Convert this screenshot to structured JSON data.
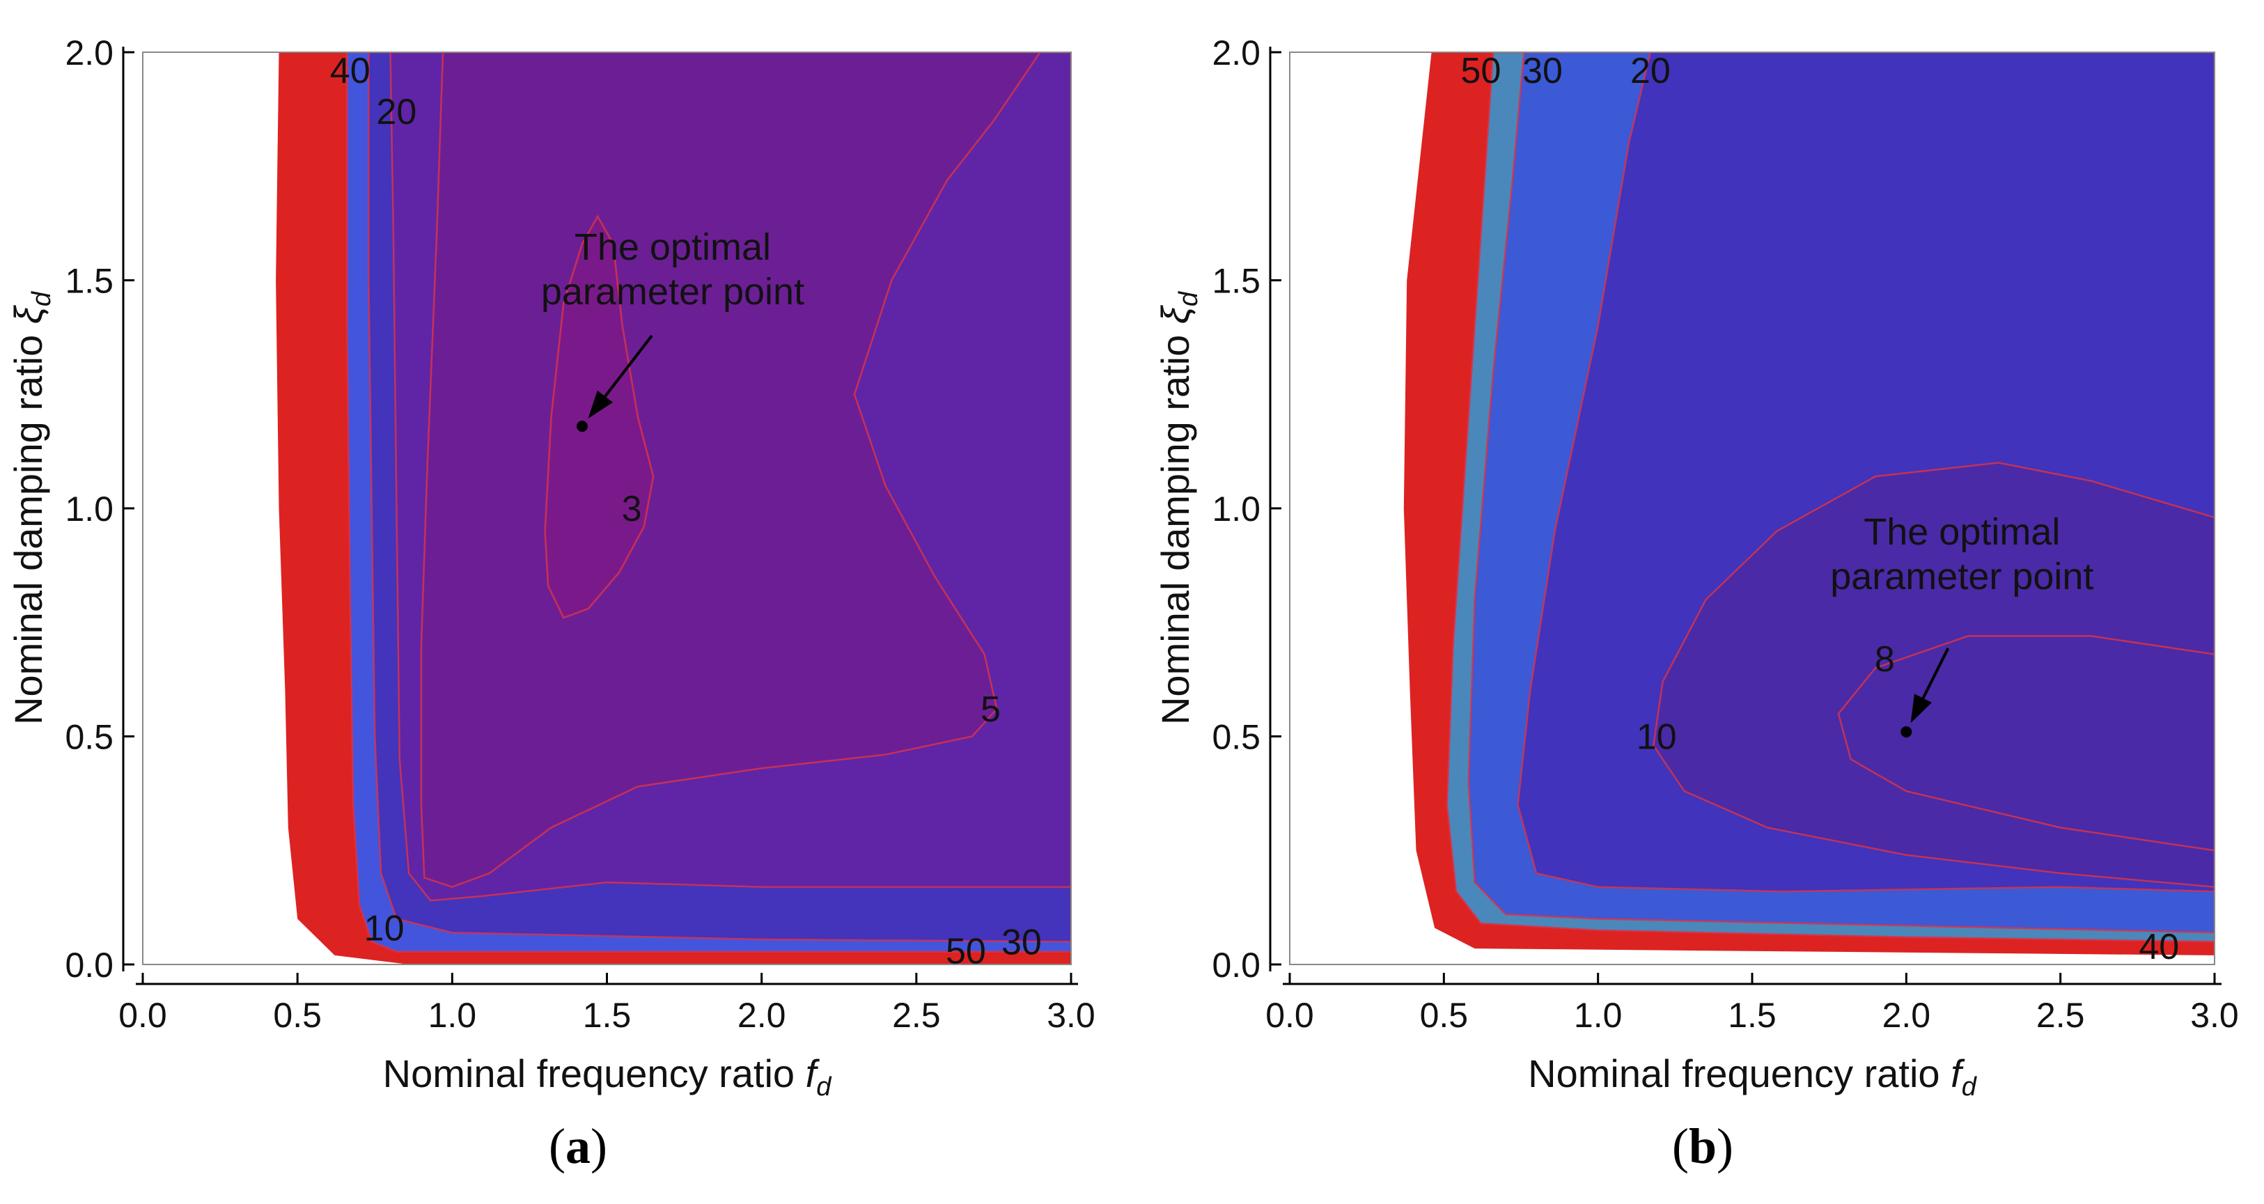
{
  "chart_data": [
    {
      "type": "contour",
      "panel": "(a)",
      "panel_letter": "a",
      "xlabel": "Nominal frequency ratio",
      "xlabel_symbol": "f",
      "xlabel_sub": "d",
      "ylabel": "Nominal damping ratio",
      "ylabel_symbol": "ξ",
      "ylabel_sub": "d",
      "xlim": [
        0.0,
        3.0
      ],
      "ylim": [
        0.0,
        2.0
      ],
      "xticks": [
        "0.0",
        "0.5",
        "1.0",
        "1.5",
        "2.0",
        "2.5",
        "3.0"
      ],
      "yticks": [
        "0.0",
        "0.5",
        "1.0",
        "1.5",
        "2.0"
      ],
      "contour_labels": [
        {
          "text": "40",
          "x": 0.67,
          "y": 1.96
        },
        {
          "text": "20",
          "x": 0.82,
          "y": 1.87
        },
        {
          "text": "3",
          "x": 1.58,
          "y": 1.0
        },
        {
          "text": "5",
          "x": 2.74,
          "y": 0.56
        },
        {
          "text": "10",
          "x": 0.78,
          "y": 0.08
        },
        {
          "text": "50",
          "x": 2.66,
          "y": 0.03
        },
        {
          "text": "30",
          "x": 2.84,
          "y": 0.05
        }
      ],
      "annotation": {
        "line1": "The optimal",
        "line2": "parameter point",
        "point": [
          1.42,
          1.18
        ]
      },
      "colors": {
        "red": "#dd2222",
        "blue": "#4455dd",
        "indigo": "#4433bb",
        "violet": "#5f25a6",
        "purple": "#6c1f95",
        "magenta": "#7a1a8a"
      }
    },
    {
      "type": "contour",
      "panel": "(b)",
      "panel_letter": "b",
      "xlabel": "Nominal frequency ratio",
      "xlabel_symbol": "f",
      "xlabel_sub": "d",
      "ylabel": "Nominal damping ratio",
      "ylabel_symbol": "ξ",
      "ylabel_sub": "d",
      "xlim": [
        0.0,
        3.0
      ],
      "ylim": [
        0.0,
        2.0
      ],
      "xticks": [
        "0.0",
        "0.5",
        "1.0",
        "1.5",
        "2.0",
        "2.5",
        "3.0"
      ],
      "yticks": [
        "0.0",
        "0.5",
        "1.0",
        "1.5",
        "2.0"
      ],
      "contour_labels": [
        {
          "text": "50",
          "x": 0.62,
          "y": 1.96
        },
        {
          "text": "30",
          "x": 0.82,
          "y": 1.96
        },
        {
          "text": "20",
          "x": 1.17,
          "y": 1.96
        },
        {
          "text": "10",
          "x": 1.19,
          "y": 0.5
        },
        {
          "text": "8",
          "x": 1.93,
          "y": 0.67
        },
        {
          "text": "40",
          "x": 2.82,
          "y": 0.04
        }
      ],
      "annotation": {
        "line1": "The optimal",
        "line2": "parameter point",
        "point": [
          2.0,
          0.51
        ]
      },
      "colors": {
        "red": "#dd2222",
        "teal": "#4a88bb",
        "blue": "#3c59d6",
        "indigo": "#4133bb",
        "violet": "#4a2aa6"
      }
    }
  ]
}
